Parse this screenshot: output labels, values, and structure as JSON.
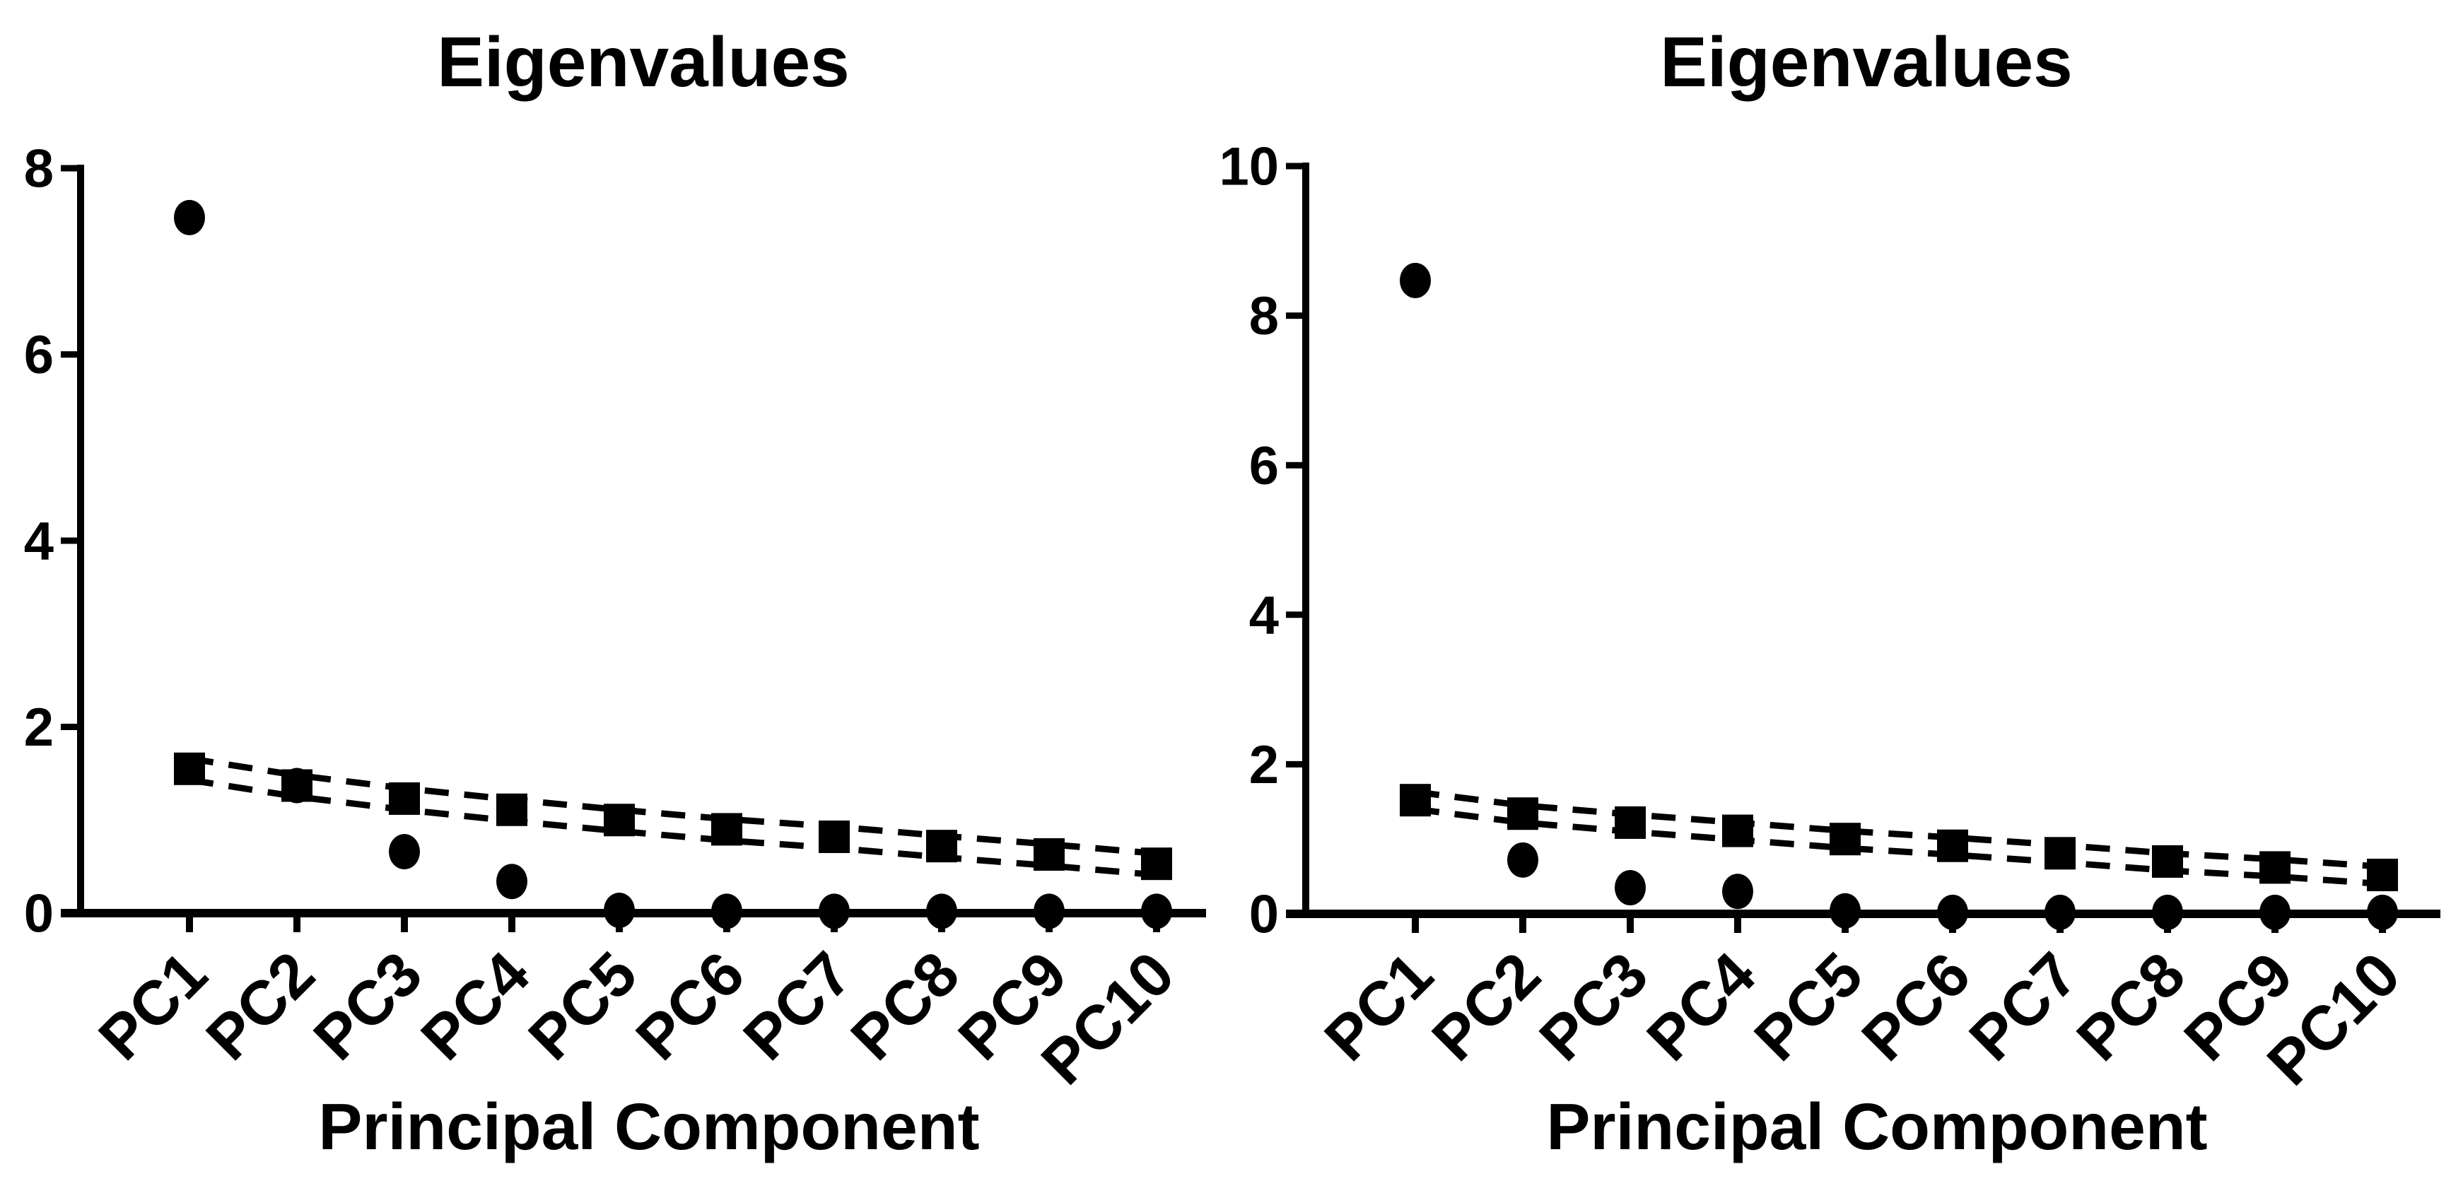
{
  "figure": {
    "background_color": "#ffffff",
    "ink_color": "#000000",
    "description_titles": [
      "Eigenvalues",
      "Eigenvalues"
    ]
  },
  "chart_data": [
    {
      "type": "scatter",
      "title": "Eigenvalues",
      "xlabel": "Principal Component",
      "ylabel": "",
      "categories": [
        "PC1",
        "PC2",
        "PC3",
        "PC4",
        "PC5",
        "PC6",
        "PC7",
        "PC8",
        "PC9",
        "PC10"
      ],
      "ylim": [
        0,
        8
      ],
      "yticks": [
        0,
        2,
        4,
        6,
        8
      ],
      "grid": false,
      "legend": "none",
      "series": [
        {
          "name": "dashed-line-upper",
          "marker": "none",
          "line": "dashed",
          "values": [
            1.66,
            1.48,
            1.34,
            1.22,
            1.11,
            1.01,
            0.93,
            0.83,
            0.74,
            0.64
          ]
        },
        {
          "name": "dashed-line-lower",
          "marker": "none",
          "line": "dashed",
          "values": [
            1.43,
            1.25,
            1.11,
            0.99,
            0.88,
            0.78,
            0.7,
            0.6,
            0.51,
            0.41
          ]
        },
        {
          "name": "circle-markers",
          "marker": "circle",
          "line": "none",
          "values": [
            7.47,
            1.37,
            0.66,
            0.34,
            0.03,
            0.02,
            0.02,
            0.02,
            0.02,
            0.02
          ]
        },
        {
          "name": "square-markers",
          "marker": "square",
          "line": "none",
          "values": [
            1.55,
            1.37,
            1.23,
            1.11,
            1.0,
            0.9,
            0.82,
            0.72,
            0.63,
            0.53
          ]
        }
      ]
    },
    {
      "type": "scatter",
      "title": "Eigenvalues",
      "xlabel": "Principal Component",
      "ylabel": "",
      "categories": [
        "PC1",
        "PC2",
        "PC3",
        "PC4",
        "PC5",
        "PC6",
        "PC7",
        "PC8",
        "PC9",
        "PC10"
      ],
      "ylim": [
        0,
        10
      ],
      "yticks": [
        0,
        2,
        4,
        6,
        8,
        10
      ],
      "grid": false,
      "legend": "none",
      "series": [
        {
          "name": "dashed-line-upper",
          "marker": "none",
          "line": "dashed",
          "values": [
            1.63,
            1.45,
            1.33,
            1.22,
            1.11,
            1.02,
            0.92,
            0.81,
            0.73,
            0.63
          ]
        },
        {
          "name": "dashed-line-lower",
          "marker": "none",
          "line": "dashed",
          "values": [
            1.4,
            1.22,
            1.1,
            0.99,
            0.88,
            0.79,
            0.69,
            0.58,
            0.5,
            0.4
          ]
        },
        {
          "name": "circle-markers",
          "marker": "circle",
          "line": "none",
          "values": [
            8.47,
            0.72,
            0.35,
            0.3,
            0.04,
            0.02,
            0.02,
            0.02,
            0.02,
            0.02
          ]
        },
        {
          "name": "square-markers",
          "marker": "square",
          "line": "none",
          "values": [
            1.52,
            1.34,
            1.22,
            1.11,
            1.0,
            0.91,
            0.81,
            0.7,
            0.62,
            0.52
          ]
        }
      ]
    }
  ]
}
